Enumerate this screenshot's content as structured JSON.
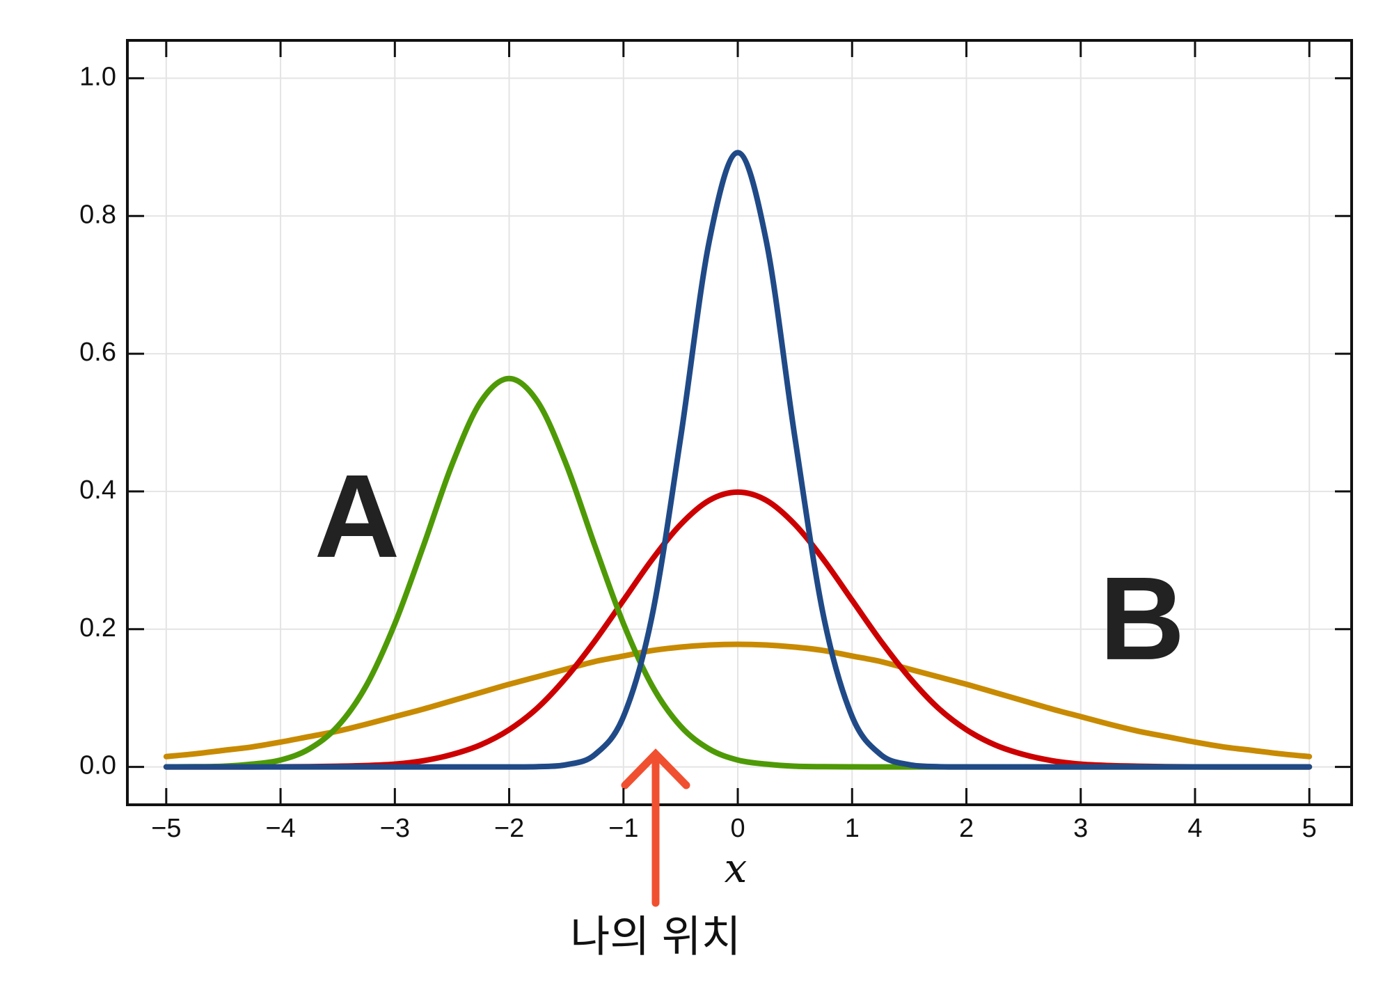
{
  "chart_data": {
    "type": "line",
    "xlabel": "x",
    "labels": [
      "A",
      "B"
    ],
    "annotation": "나의 위치",
    "x": [
      -5,
      -4.75,
      -4.5,
      -4.25,
      -4,
      -3.75,
      -3.5,
      -3.25,
      -3,
      -2.75,
      -2.5,
      -2.25,
      -2,
      -1.75,
      -1.5,
      -1.25,
      -1,
      -0.75,
      -0.5,
      -0.25,
      0,
      0.25,
      0.5,
      0.75,
      1,
      1.25,
      1.5,
      1.75,
      2,
      2.25,
      2.5,
      2.75,
      3,
      3.25,
      3.5,
      3.75,
      4,
      4.25,
      4.5,
      4.75,
      5
    ],
    "series": [
      {
        "color": "#c88a00",
        "values": [
          0.015,
          0.019,
          0.024,
          0.029,
          0.036,
          0.044,
          0.052,
          0.062,
          0.073,
          0.084,
          0.096,
          0.108,
          0.12,
          0.131,
          0.142,
          0.153,
          0.161,
          0.169,
          0.174,
          0.177,
          0.178,
          0.177,
          0.174,
          0.169,
          0.161,
          0.153,
          0.142,
          0.131,
          0.12,
          0.108,
          0.096,
          0.084,
          0.073,
          0.062,
          0.052,
          0.044,
          0.036,
          0.029,
          0.024,
          0.019,
          0.015
        ]
      },
      {
        "color": "#cc0000",
        "values": [
          0,
          0,
          0,
          0,
          0.0001,
          0.0004,
          0.001,
          0.002,
          0.004,
          0.009,
          0.018,
          0.032,
          0.054,
          0.086,
          0.13,
          0.183,
          0.242,
          0.301,
          0.352,
          0.387,
          0.399,
          0.387,
          0.352,
          0.301,
          0.242,
          0.183,
          0.13,
          0.086,
          0.054,
          0.032,
          0.018,
          0.009,
          0.004,
          0.002,
          0.001,
          0.0004,
          0.0001,
          0,
          0,
          0,
          0
        ]
      },
      {
        "color": "#4e9a06",
        "values": [
          0.0001,
          0.0003,
          0.001,
          0.004,
          0.01,
          0.026,
          0.059,
          0.118,
          0.208,
          0.321,
          0.439,
          0.53,
          0.564,
          0.53,
          0.439,
          0.321,
          0.208,
          0.118,
          0.059,
          0.026,
          0.01,
          0.004,
          0.001,
          0.0003,
          0.0001,
          0,
          0,
          0,
          0,
          0,
          0,
          0,
          0,
          0,
          0,
          0,
          0,
          0,
          0,
          0,
          0
        ]
      },
      {
        "color": "#204a87",
        "values": [
          0,
          0,
          0,
          0,
          0,
          0,
          0,
          0,
          0,
          0,
          0,
          0,
          0,
          0.0004,
          0.0032,
          0.0179,
          0.0732,
          0.219,
          0.478,
          0.763,
          0.892,
          0.763,
          0.478,
          0.219,
          0.0732,
          0.0179,
          0.0032,
          0.0004,
          0,
          0,
          0,
          0,
          0,
          0,
          0,
          0,
          0,
          0,
          0,
          0,
          0
        ]
      }
    ],
    "xlim": [
      -5.34,
      5.37
    ],
    "ylim": [
      -0.055,
      1.055
    ],
    "xticks": [
      {
        "value": -5,
        "label": "−5"
      },
      {
        "value": -4,
        "label": "−4"
      },
      {
        "value": -3,
        "label": "−3"
      },
      {
        "value": -2,
        "label": "−2"
      },
      {
        "value": -1,
        "label": "−1"
      },
      0,
      1,
      2,
      3,
      4,
      5
    ],
    "yticks": [
      {
        "value": 0,
        "label": "0.0"
      },
      0.2,
      0.4,
      0.6,
      0.8,
      {
        "value": 1,
        "label": "1.0"
      }
    ],
    "grid": true
  }
}
